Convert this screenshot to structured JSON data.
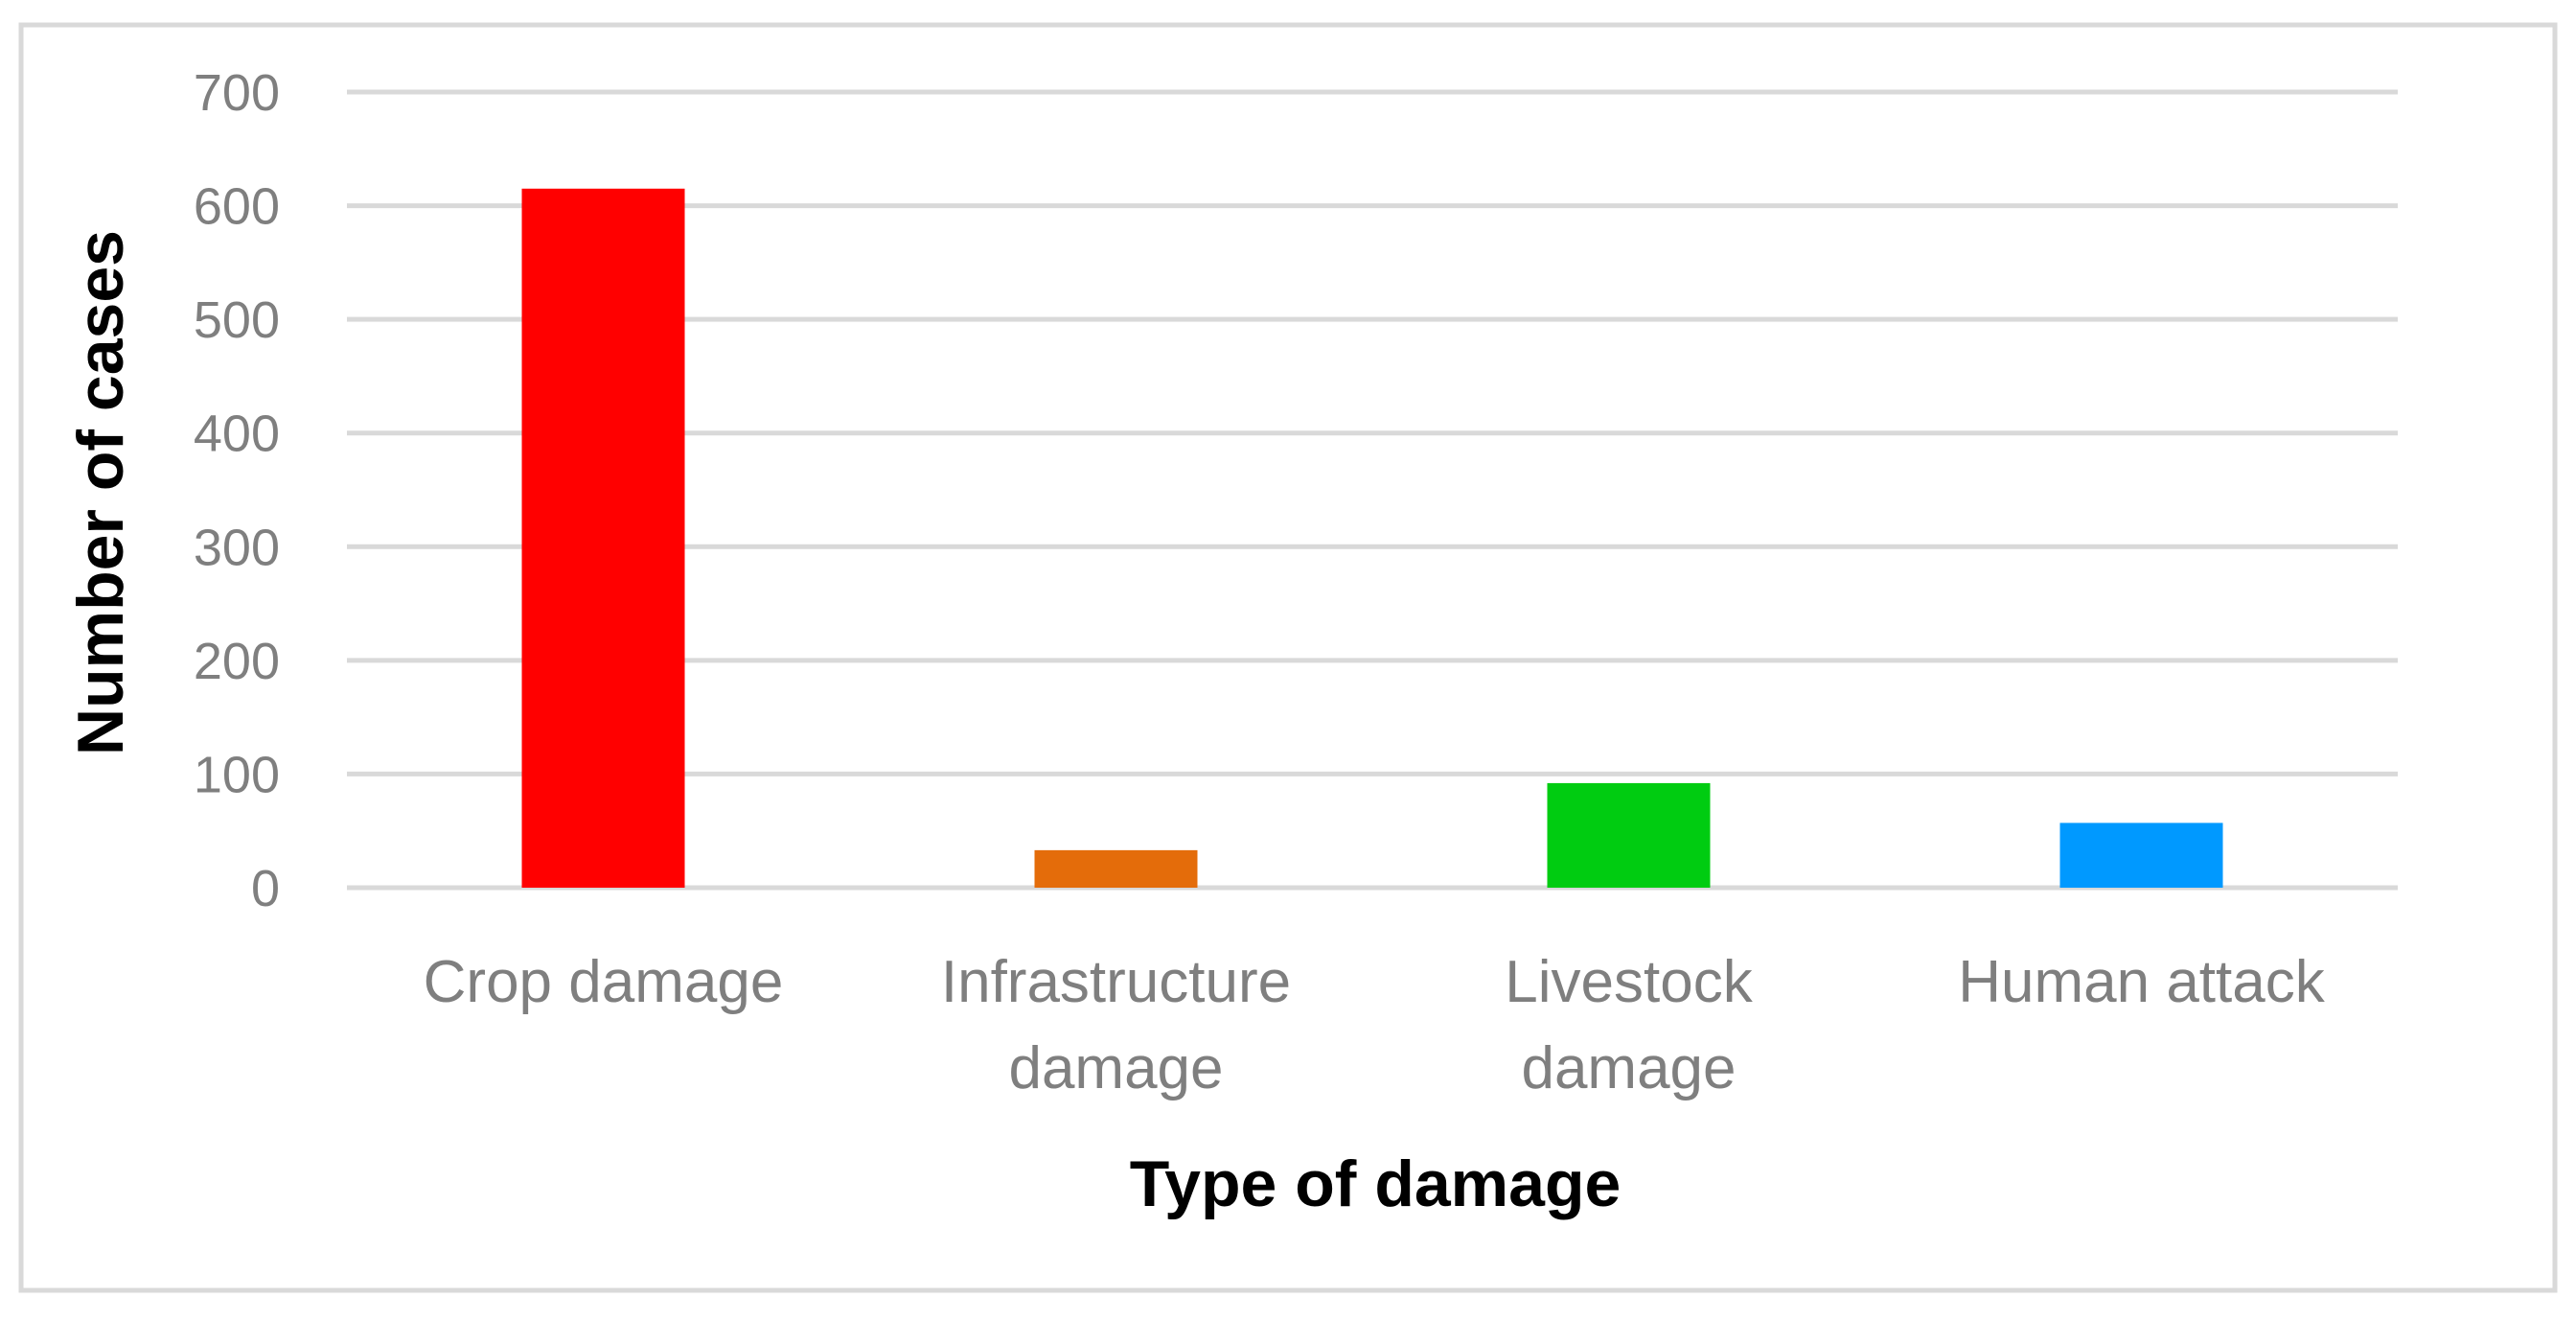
{
  "chart_data": {
    "type": "bar",
    "title": "",
    "xlabel": "Type of damage",
    "ylabel": "Number of cases",
    "categories": [
      [
        "Crop damage"
      ],
      [
        "Infrastructure",
        "damage"
      ],
      [
        "Livestock",
        "damage"
      ],
      [
        "Human attack"
      ]
    ],
    "series": [
      {
        "values": [
          615,
          33,
          92,
          57
        ],
        "colors": [
          "#ff0000",
          "#e46c0a",
          "#00cc11",
          "#0099ff"
        ]
      }
    ],
    "ylim": [
      0,
      700
    ],
    "yticks": [
      0,
      100,
      200,
      300,
      400,
      500,
      600,
      700
    ],
    "grid": true,
    "legend": "none"
  },
  "colors": {
    "gridline": "#d9d9d9",
    "frame": "#d9d9d9",
    "tick_text": "#7f7f7f",
    "axis_title_text": "#000000"
  }
}
